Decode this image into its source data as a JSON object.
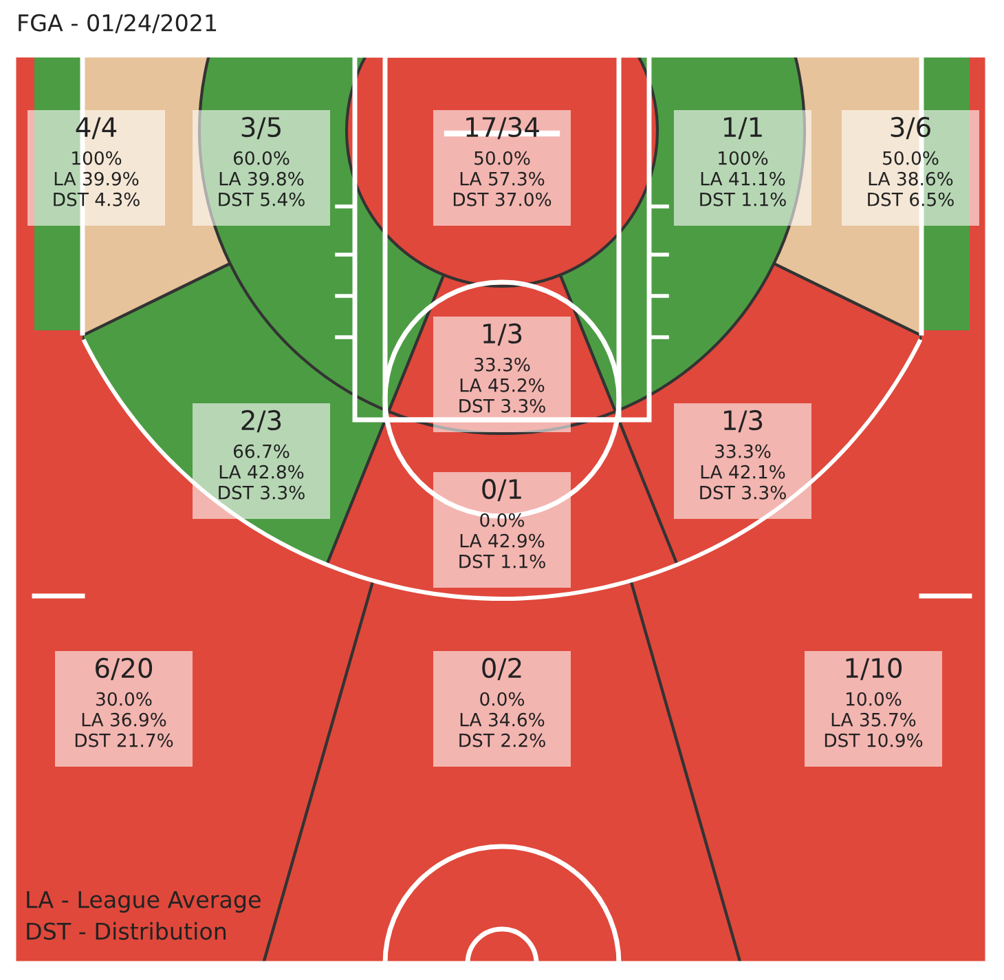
{
  "chart_data": {
    "type": "other",
    "title": "FGA - 01/24/2021",
    "categories": [
      null,
      null,
      null,
      null,
      null,
      null,
      null,
      null,
      null,
      null,
      null,
      null,
      null,
      null
    ],
    "values": [
      100,
      60.0,
      50.0,
      100,
      50.0,
      33.3,
      66.7,
      33.3,
      0.0,
      30.0,
      0.0,
      10.0,
      null,
      null
    ],
    "value_labels": [
      "4/4\n100%\nLA 39.9%\nDST 4.3%",
      "3/5\n60.0%\nLA 39.8%\nDST 5.4%",
      "17/34\n50.0%\nLA 57.3%\nDST 37.0%",
      "1/1\n100%\nLA 41.1%\nDST 1.1%",
      "3/6\n50.0%\nLA 38.6%\nDST 6.5%",
      "1/3\n33.3%\nLA 45.2%\nDST 3.3%",
      "2/3\n66.7%\nLA 42.8%\nDST 3.3%",
      "1/3\n33.3%\nLA 42.1%\nDST 3.3%",
      "0/1\n0.0%\nLA 42.9%\nDST 1.1%",
      "6/20\n30.0%\nLA 36.9%\nDST 21.7%",
      "0/2\n0.0%\nLA 34.6%\nDST 2.2%",
      "1/10\n10.0%\nLA 35.7%\nDST 10.9%",
      null,
      null
    ],
    "colors": [
      "#4c9c44",
      "#4c9c44",
      "#e0483b",
      "#4c9c44",
      "#4c9c44",
      "#e0483b",
      "#4c9c44",
      "#e0483b",
      "#e0483b",
      "#e0483b",
      "#e0483b",
      "#e0483b",
      "#e6c39a",
      "#e6c39a"
    ],
    "annotations": [
      "LA - League Average",
      "DST - Distribution"
    ]
  }
}
